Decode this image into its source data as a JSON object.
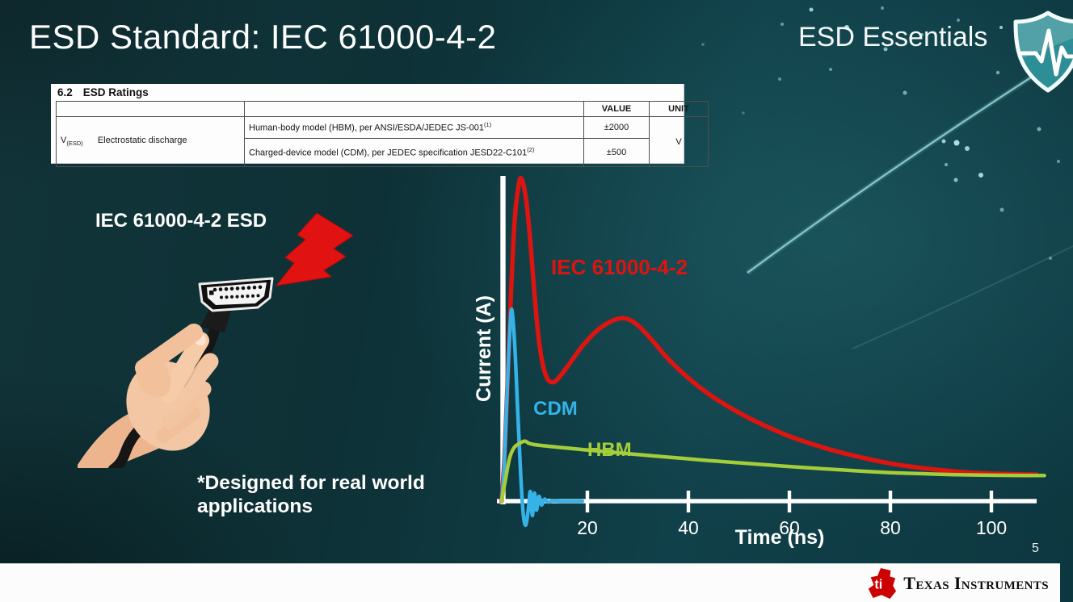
{
  "slide": {
    "title": "ESD Standard: IEC 61000-4-2",
    "brand": "ESD Essentials",
    "page_number": "5",
    "footer_brand": "Texas Instruments"
  },
  "ratings_table": {
    "section_number": "6.2",
    "section_title": "ESD Ratings",
    "headers": {
      "value": "VALUE",
      "unit": "UNIT"
    },
    "parameter": {
      "symbol": "V",
      "subscript": "(ESD)",
      "name": "Electrostatic discharge"
    },
    "rows": [
      {
        "description": "Human-body model (HBM), per ANSI/ESDA/JEDEC JS-001",
        "footnote_ref": "(1)",
        "value": "±2000"
      },
      {
        "description": "Charged-device model (CDM), per JEDEC specification JESD22-C101",
        "footnote_ref": "(2)",
        "value": "±500"
      }
    ],
    "unit": "V"
  },
  "illustration": {
    "caption": "IEC 61000-4-2 ESD",
    "footnote": [
      "*Designed for real world",
      "applications"
    ]
  },
  "chart_data": {
    "type": "line",
    "title": "",
    "xlabel": "Time (ns)",
    "ylabel": "Current (A)",
    "x_ticks": [
      20,
      40,
      60,
      80,
      100
    ],
    "xlim": [
      0,
      112
    ],
    "ylim": [
      -10,
      105
    ],
    "y_axis_note": "y axis unlabeled; values are relative current amplitude 0-100",
    "grid": false,
    "legend_position": "inline-labels",
    "series": [
      {
        "name": "IEC 61000-4-2",
        "color": "#dd1410",
        "width": 5.5,
        "label_pos": [
          12.8,
          71
        ],
        "label_size": 26,
        "points": [
          [
            3,
            0
          ],
          [
            3.6,
            14
          ],
          [
            4.2,
            38
          ],
          [
            4.9,
            66
          ],
          [
            5.6,
            88
          ],
          [
            6.3,
            98
          ],
          [
            6.9,
            101
          ],
          [
            7.8,
            95
          ],
          [
            8.6,
            83
          ],
          [
            9.4,
            67
          ],
          [
            10.2,
            53
          ],
          [
            11,
            44
          ],
          [
            12,
            38.5
          ],
          [
            13,
            37.2
          ],
          [
            14,
            38
          ],
          [
            16,
            42
          ],
          [
            19,
            48.5
          ],
          [
            22,
            53.5
          ],
          [
            25,
            56.5
          ],
          [
            27.5,
            57.2
          ],
          [
            30,
            55
          ],
          [
            33,
            50
          ],
          [
            36,
            44.5
          ],
          [
            40,
            38.5
          ],
          [
            44,
            33.5
          ],
          [
            48,
            29.5
          ],
          [
            52,
            26
          ],
          [
            56,
            23
          ],
          [
            60,
            20.3
          ],
          [
            65,
            17.6
          ],
          [
            70,
            15.3
          ],
          [
            75,
            13.4
          ],
          [
            80,
            11.8
          ],
          [
            85,
            10.6
          ],
          [
            90,
            9.7
          ],
          [
            95,
            9
          ],
          [
            100,
            8.6
          ],
          [
            105,
            8.4
          ],
          [
            109,
            8.3
          ]
        ]
      },
      {
        "name": "CDM",
        "color": "#35b3e8",
        "width": 4.5,
        "label_pos": [
          9.3,
          27
        ],
        "label_size": 24,
        "points": [
          [
            3,
            0
          ],
          [
            3.5,
            10
          ],
          [
            4.1,
            34
          ],
          [
            4.6,
            52
          ],
          [
            5,
            60
          ],
          [
            5.6,
            49
          ],
          [
            6.2,
            28
          ],
          [
            6.8,
            8
          ],
          [
            7.3,
            -4
          ],
          [
            7.8,
            -7.5
          ],
          [
            8.3,
            -2.5
          ],
          [
            8.7,
            3
          ],
          [
            9.1,
            -4.5
          ],
          [
            9.5,
            2.5
          ],
          [
            9.9,
            -2.8
          ],
          [
            10.4,
            1.5
          ],
          [
            10.9,
            -1.2
          ],
          [
            11.5,
            0.6
          ],
          [
            12.2,
            -0.3
          ],
          [
            13.1,
            0.1
          ],
          [
            15,
            0
          ],
          [
            19,
            0
          ]
        ]
      },
      {
        "name": "HBM",
        "color": "#a4cd39",
        "width": 4.5,
        "label_pos": [
          20,
          14.2
        ],
        "label_size": 24,
        "points": [
          [
            3,
            0
          ],
          [
            3.8,
            7
          ],
          [
            4.6,
            13.5
          ],
          [
            5.5,
            16.8
          ],
          [
            6.5,
            18
          ],
          [
            7.6,
            18.8
          ],
          [
            8.4,
            18.1
          ],
          [
            9.4,
            17.7
          ],
          [
            11,
            17.4
          ],
          [
            14,
            16.9
          ],
          [
            18,
            16.3
          ],
          [
            22,
            15.7
          ],
          [
            27,
            15
          ],
          [
            32,
            14.3
          ],
          [
            38,
            13.5
          ],
          [
            44,
            12.7
          ],
          [
            50,
            12
          ],
          [
            56,
            11.3
          ],
          [
            62,
            10.6
          ],
          [
            68,
            10
          ],
          [
            74,
            9.4
          ],
          [
            80,
            8.9
          ],
          [
            86,
            8.6
          ],
          [
            92,
            8.3
          ],
          [
            98,
            8.15
          ],
          [
            104,
            8.05
          ],
          [
            110.5,
            8
          ]
        ]
      }
    ]
  },
  "colors": {
    "background_teal": "#0e3a41",
    "accent_red": "#dd1410",
    "accent_cyan": "#35b3e8",
    "accent_green": "#a4cd39",
    "ti_red": "#cc0000"
  }
}
